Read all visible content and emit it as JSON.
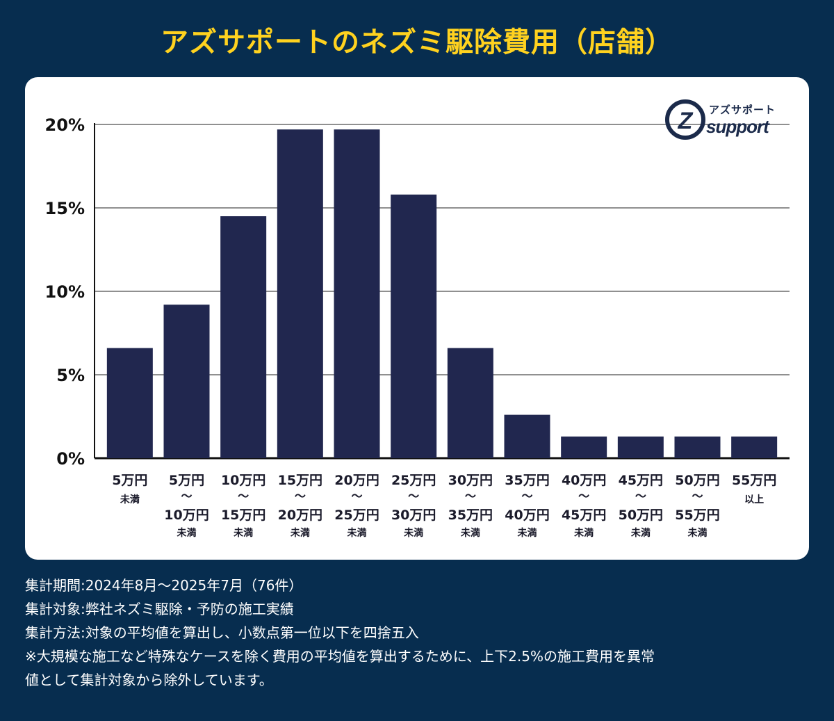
{
  "title": "アズサポートのネズミ駆除費用（店舗）",
  "logo": {
    "text_top": "アズサポート",
    "text_bottom": "support"
  },
  "colors": {
    "background": "#072d4f",
    "bar": "#21274f",
    "title": "#ffd21f",
    "card": "#ffffff"
  },
  "chart_data": {
    "type": "bar",
    "title": "アズサポートのネズミ駆除費用（店舗）",
    "xlabel": "",
    "ylabel": "",
    "ylim": [
      0,
      20
    ],
    "yticks": [
      "0%",
      "5%",
      "10%",
      "15%",
      "20%"
    ],
    "categories": [
      [
        "5万円",
        "",
        "",
        "未満"
      ],
      [
        "5万円",
        "〜",
        "10万円",
        "未満"
      ],
      [
        "10万円",
        "〜",
        "15万円",
        "未満"
      ],
      [
        "15万円",
        "〜",
        "20万円",
        "未満"
      ],
      [
        "20万円",
        "〜",
        "25万円",
        "未満"
      ],
      [
        "25万円",
        "〜",
        "30万円",
        "未満"
      ],
      [
        "30万円",
        "〜",
        "35万円",
        "未満"
      ],
      [
        "35万円",
        "〜",
        "40万円",
        "未満"
      ],
      [
        "40万円",
        "〜",
        "45万円",
        "未満"
      ],
      [
        "45万円",
        "〜",
        "50万円",
        "未満"
      ],
      [
        "50万円",
        "〜",
        "55万円",
        "未満"
      ],
      [
        "55万円",
        "",
        "",
        "以上"
      ]
    ],
    "values": [
      6.6,
      9.2,
      14.5,
      19.7,
      19.7,
      15.8,
      6.6,
      2.6,
      1.3,
      1.3,
      1.3,
      1.3
    ]
  },
  "notes": [
    "集計期間:2024年8月〜2025年7月（76件）",
    "集計対象:弊社ネズミ駆除・予防の施工実績",
    "集計方法:対象の平均値を算出し、小数点第一位以下を四捨五入",
    "※大規模な施工など特殊なケースを除く費用の平均値を算出するために、上下2.5%の施工費用を異常",
    "値として集計対象から除外しています。"
  ]
}
